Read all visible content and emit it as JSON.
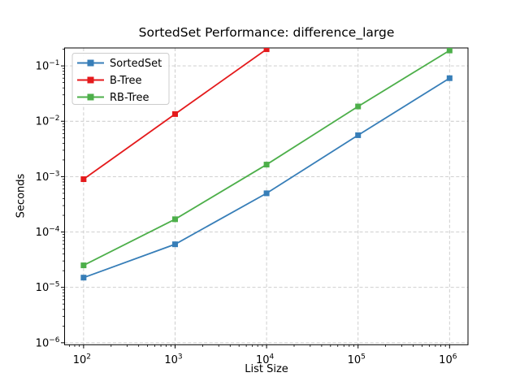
{
  "chart_data": {
    "type": "line",
    "title": "SortedSet Performance: difference_large",
    "xlabel": "List Size",
    "ylabel": "Seconds",
    "xscale": "log",
    "yscale": "log",
    "xlim": [
      62,
      1590000
    ],
    "ylim": [
      9.2e-07,
      0.211
    ],
    "x_tick_exponents": [
      2,
      3,
      4,
      5,
      6
    ],
    "y_tick_exponents": [
      -6,
      -5,
      -4,
      -3,
      -2,
      -1
    ],
    "grid": "major-dashed",
    "legend": {
      "position": "upper-left"
    },
    "series": [
      {
        "name": "SortedSet",
        "color": "#377eb8",
        "marker": "square",
        "x": [
          100,
          1000,
          10000,
          100000,
          1000000
        ],
        "values": [
          1.5e-05,
          6e-05,
          0.0005,
          0.0056,
          0.06
        ]
      },
      {
        "name": "B-Tree",
        "color": "#e41a1c",
        "marker": "square",
        "x": [
          100,
          1000,
          10000
        ],
        "values": [
          0.0009,
          0.0135,
          0.2
        ]
      },
      {
        "name": "RB-Tree",
        "color": "#4daf4a",
        "marker": "square",
        "x": [
          100,
          1000,
          10000,
          100000,
          1000000
        ],
        "values": [
          2.5e-05,
          0.00017,
          0.00165,
          0.0185,
          0.19
        ]
      }
    ],
    "colors": {
      "grid": "#c9c9c9",
      "spine": "#000000",
      "legend_border": "#cccccc",
      "legend_bg": "#ffffff"
    }
  }
}
